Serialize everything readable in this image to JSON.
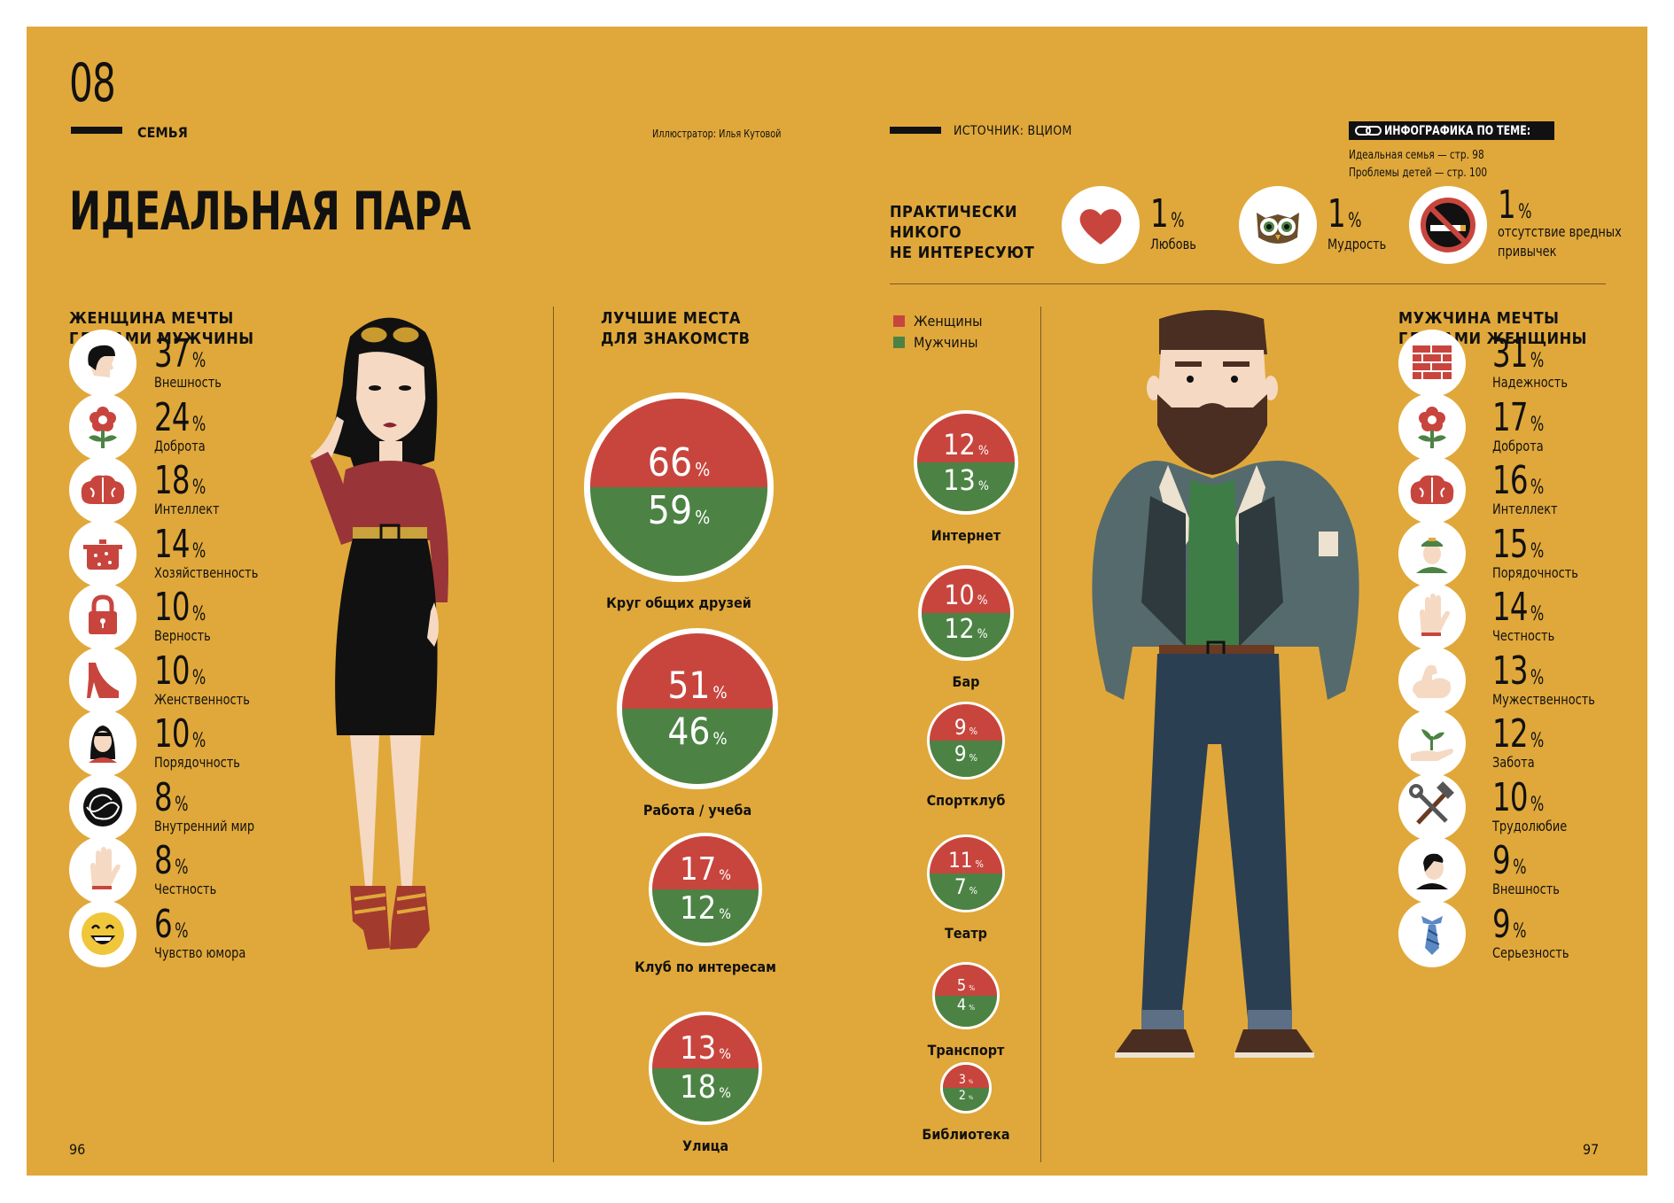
{
  "header": {
    "issue_number": "08",
    "section": "СЕМЬЯ",
    "illustrator": "Иллюстратор: Илья Кутовой",
    "source": "ИСТОЧНИК: ВЦИОМ",
    "related_title": "ИНФОГРАФИКА ПО ТЕМЕ:",
    "related_1": "Идеальная семья — стр. 98",
    "related_2": "Проблемы детей — стр. 100"
  },
  "title": "ИДЕАЛЬНАЯ ПАРА",
  "no_interest": {
    "heading_line1": "ПРАКТИЧЕСКИ",
    "heading_line2": "НИКОГО",
    "heading_line3": "НЕ ИНТЕРЕСУЮТ",
    "items": [
      {
        "value": "1",
        "unit": "%",
        "label": "Любовь",
        "icon": "heart-icon"
      },
      {
        "value": "1",
        "unit": "%",
        "label": "Мудрость",
        "icon": "owl-icon"
      },
      {
        "value": "1",
        "unit": "%",
        "label_line1": "отсутствие вредных",
        "label_line2": "привычек",
        "icon": "no-smoking-icon"
      }
    ]
  },
  "woman": {
    "heading_line1": "ЖЕНЩИНА МЕЧТЫ",
    "heading_line2": "ГЛАЗАМИ МУЖЧИНЫ",
    "items": [
      {
        "value": "37",
        "unit": "%",
        "label": "Внешность",
        "icon": "face-profile-icon"
      },
      {
        "value": "24",
        "unit": "%",
        "label": "Доброта",
        "icon": "flower-icon"
      },
      {
        "value": "18",
        "unit": "%",
        "label": "Интеллект",
        "icon": "brain-icon"
      },
      {
        "value": "14",
        "unit": "%",
        "label": "Хозяйственность",
        "icon": "cooking-pot-icon"
      },
      {
        "value": "10",
        "unit": "%",
        "label": "Верность",
        "icon": "padlock-icon"
      },
      {
        "value": "10",
        "unit": "%",
        "label": "Женственность",
        "icon": "high-heel-icon"
      },
      {
        "value": "10",
        "unit": "%",
        "label": "Порядочность",
        "icon": "woman-portrait-icon"
      },
      {
        "value": "8",
        "unit": "%",
        "label": "Внутренний мир",
        "icon": "swirl-icon"
      },
      {
        "value": "8",
        "unit": "%",
        "label": "Честность",
        "icon": "hand-icon"
      },
      {
        "value": "6",
        "unit": "%",
        "label": "Чувство юмора",
        "icon": "smiley-icon"
      }
    ]
  },
  "man": {
    "heading_line1": "МУЖЧИНА МЕЧТЫ",
    "heading_line2": "ГЛАЗАМИ ЖЕНЩИНЫ",
    "items": [
      {
        "value": "31",
        "unit": "%",
        "label": "Надежность",
        "icon": "brick-wall-icon"
      },
      {
        "value": "17",
        "unit": "%",
        "label": "Доброта",
        "icon": "flower-icon"
      },
      {
        "value": "16",
        "unit": "%",
        "label": "Интеллект",
        "icon": "brain-icon"
      },
      {
        "value": "15",
        "unit": "%",
        "label": "Порядочность",
        "icon": "soldier-portrait-icon"
      },
      {
        "value": "14",
        "unit": "%",
        "label": "Честность",
        "icon": "hand-icon"
      },
      {
        "value": "13",
        "unit": "%",
        "label": "Мужественность",
        "icon": "biceps-icon"
      },
      {
        "value": "12",
        "unit": "%",
        "label": "Забота",
        "icon": "sprout-hand-icon"
      },
      {
        "value": "10",
        "unit": "%",
        "label": "Трудолюбие",
        "icon": "hammer-wrench-icon"
      },
      {
        "value": "9",
        "unit": "%",
        "label": "Внешность",
        "icon": "man-portrait-icon"
      },
      {
        "value": "9",
        "unit": "%",
        "label": "Серьезность",
        "icon": "tie-icon"
      }
    ]
  },
  "places": {
    "heading_line1": "ЛУЧШИЕ МЕСТА",
    "heading_line2": "ДЛЯ ЗНАКОМСТВ",
    "legend_women": "Женщины",
    "legend_men": "Мужчины",
    "unit": "%",
    "colors": {
      "women": "#c8453e",
      "men": "#4c8344"
    }
  },
  "chart_data": {
    "type": "pie",
    "series_names": [
      "Женщины",
      "Мужчины"
    ],
    "categories": [
      "Круг общих друзей",
      "Работа / учеба",
      "Клуб по интересам",
      "Улица",
      "Интернет",
      "Бар",
      "Спортклуб",
      "Театр",
      "Транспорт",
      "Библиотека"
    ],
    "women": [
      66,
      51,
      17,
      13,
      12,
      10,
      9,
      11,
      5,
      3
    ],
    "men": [
      59,
      46,
      12,
      18,
      13,
      12,
      9,
      7,
      4,
      2
    ]
  },
  "footer": {
    "page_left": "96",
    "page_right": "97"
  }
}
